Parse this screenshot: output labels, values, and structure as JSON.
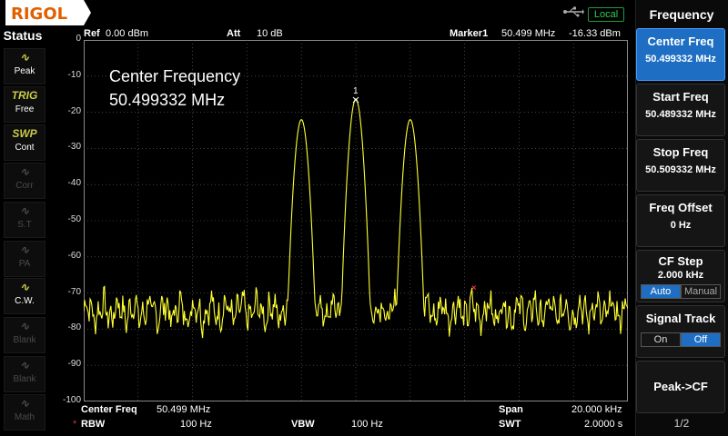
{
  "brand": "RIGOL",
  "usb_indicator": "usb-icon",
  "local_label": "Local",
  "status": {
    "title": "Status",
    "buttons": [
      {
        "icon": "peak",
        "label": "Peak",
        "state": "on"
      },
      {
        "icon": "TRIG",
        "label": "Free",
        "state": "on"
      },
      {
        "icon": "SWP",
        "label": "Cont",
        "state": "on"
      },
      {
        "icon": "corr",
        "label": "Corr",
        "state": "off"
      },
      {
        "icon": "st",
        "label": "S.T",
        "state": "off"
      },
      {
        "icon": "pa",
        "label": "PA",
        "state": "off"
      },
      {
        "icon": "cw",
        "label": "C.W.",
        "state": "on"
      },
      {
        "icon": "blank",
        "label": "Blank",
        "state": "off"
      },
      {
        "icon": "blank",
        "label": "Blank",
        "state": "off"
      },
      {
        "icon": "math",
        "label": "Math",
        "state": "off"
      }
    ]
  },
  "header": {
    "ref_label": "Ref",
    "ref_value": "0.00 dBm",
    "att_label": "Att",
    "att_value": "10 dB",
    "marker_label": "Marker1",
    "marker_freq": "50.499 MHz",
    "marker_amp": "-16.33 dBm"
  },
  "overlay": {
    "line1": "Center Frequency",
    "line2": "50.499332 MHz"
  },
  "marker_number": "1",
  "yaxis": {
    "labels": [
      "0",
      "-10",
      "-20",
      "-30",
      "-40",
      "-50",
      "-60",
      "-70",
      "-80",
      "-90",
      "-100"
    ]
  },
  "footer": {
    "center_label": "Center Freq",
    "center_value": "50.499 MHz",
    "span_label": "Span",
    "span_value": "20.000 kHz",
    "rbw_star": "*",
    "rbw_label": "RBW",
    "rbw_value": "100 Hz",
    "vbw_label": "VBW",
    "vbw_value": "100 Hz",
    "swt_label": "SWT",
    "swt_value": "2.0000 s"
  },
  "menu": {
    "title": "Frequency",
    "items": [
      {
        "label": "Center Freq",
        "value": "50.499332 MHz"
      },
      {
        "label": "Start Freq",
        "value": "50.489332 MHz"
      },
      {
        "label": "Stop Freq",
        "value": "50.509332 MHz"
      },
      {
        "label": "Freq Offset",
        "value": "0 Hz"
      },
      {
        "label": "CF Step",
        "value": "2.000 kHz",
        "opt_a": "Auto",
        "opt_b": "Manual"
      },
      {
        "label": "Signal Track",
        "opt_a": "On",
        "opt_b": "Off"
      },
      {
        "label": "Peak->CF"
      }
    ],
    "page": "1/2"
  },
  "colors": {
    "trace": "#ffff33",
    "selected": "#1e6fc4",
    "grid": "#6a6a6a"
  },
  "chart_data": {
    "type": "line",
    "xlim": [
      50.489332,
      50.509332
    ],
    "ylim": [
      -100,
      0
    ],
    "peaks": [
      {
        "x": 50.497332,
        "y": -22
      },
      {
        "x": 50.499332,
        "y": -16.33
      },
      {
        "x": 50.501332,
        "y": -22
      }
    ],
    "noise_floor": -75
  }
}
